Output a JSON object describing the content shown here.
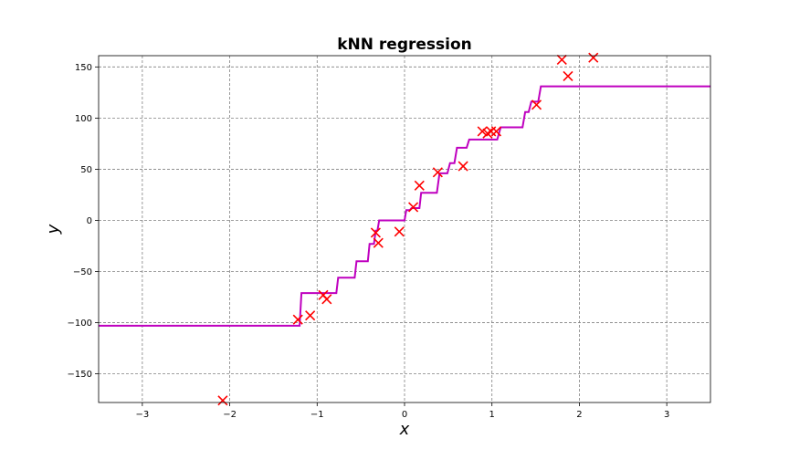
{
  "chart_data": {
    "type": "line",
    "title": "kNN regression",
    "xlabel": "x",
    "ylabel": "y",
    "xlim": [
      -3.5,
      3.5
    ],
    "ylim": [
      -178,
      161
    ],
    "xticks": [
      -3,
      -2,
      -1,
      0,
      1,
      2,
      3
    ],
    "xtick_labels": [
      "−3",
      "−2",
      "−1",
      "0",
      "1",
      "2",
      "3"
    ],
    "yticks": [
      -150,
      -100,
      -50,
      0,
      50,
      100,
      150
    ],
    "ytick_labels": [
      "−150",
      "−100",
      "−50",
      "0",
      "50",
      "100",
      "150"
    ],
    "grid": true,
    "colors": {
      "line": "#bf00bf",
      "points": "#ff0000",
      "grid": "#808080"
    },
    "series": [
      {
        "kind": "scatter",
        "marker": "x",
        "x": [
          -2.08,
          -1.22,
          -1.08,
          -0.93,
          -0.89,
          -0.33,
          -0.3,
          -0.06,
          0.1,
          0.17,
          0.38,
          0.67,
          0.89,
          0.95,
          0.99,
          1.05,
          1.51,
          1.8,
          1.87,
          2.16
        ],
        "y": [
          -176,
          -97,
          -93,
          -73,
          -77,
          -12,
          -22,
          -11,
          13,
          34,
          47,
          53,
          87,
          85,
          87,
          87,
          113,
          157,
          141,
          159
        ]
      },
      {
        "kind": "line",
        "x": [
          -3.5,
          -1.2,
          -1.18,
          -0.78,
          -0.76,
          -0.57,
          -0.55,
          -0.42,
          -0.4,
          -0.35,
          -0.33,
          -0.31,
          -0.29,
          0.0,
          0.02,
          0.06,
          0.08,
          0.17,
          0.19,
          0.37,
          0.4,
          0.49,
          0.52,
          0.57,
          0.6,
          0.71,
          0.74,
          1.06,
          1.1,
          1.35,
          1.38,
          1.42,
          1.45,
          1.53,
          1.56,
          3.5
        ],
        "y": [
          -103,
          -103,
          -71,
          -71,
          -56,
          -56,
          -40,
          -40,
          -23,
          -23,
          -10,
          -10,
          0,
          0,
          10,
          10,
          12,
          12,
          27,
          27,
          46,
          46,
          56,
          56,
          71,
          71,
          79,
          79,
          91,
          91,
          106,
          106,
          116,
          116,
          131,
          131
        ]
      }
    ]
  }
}
